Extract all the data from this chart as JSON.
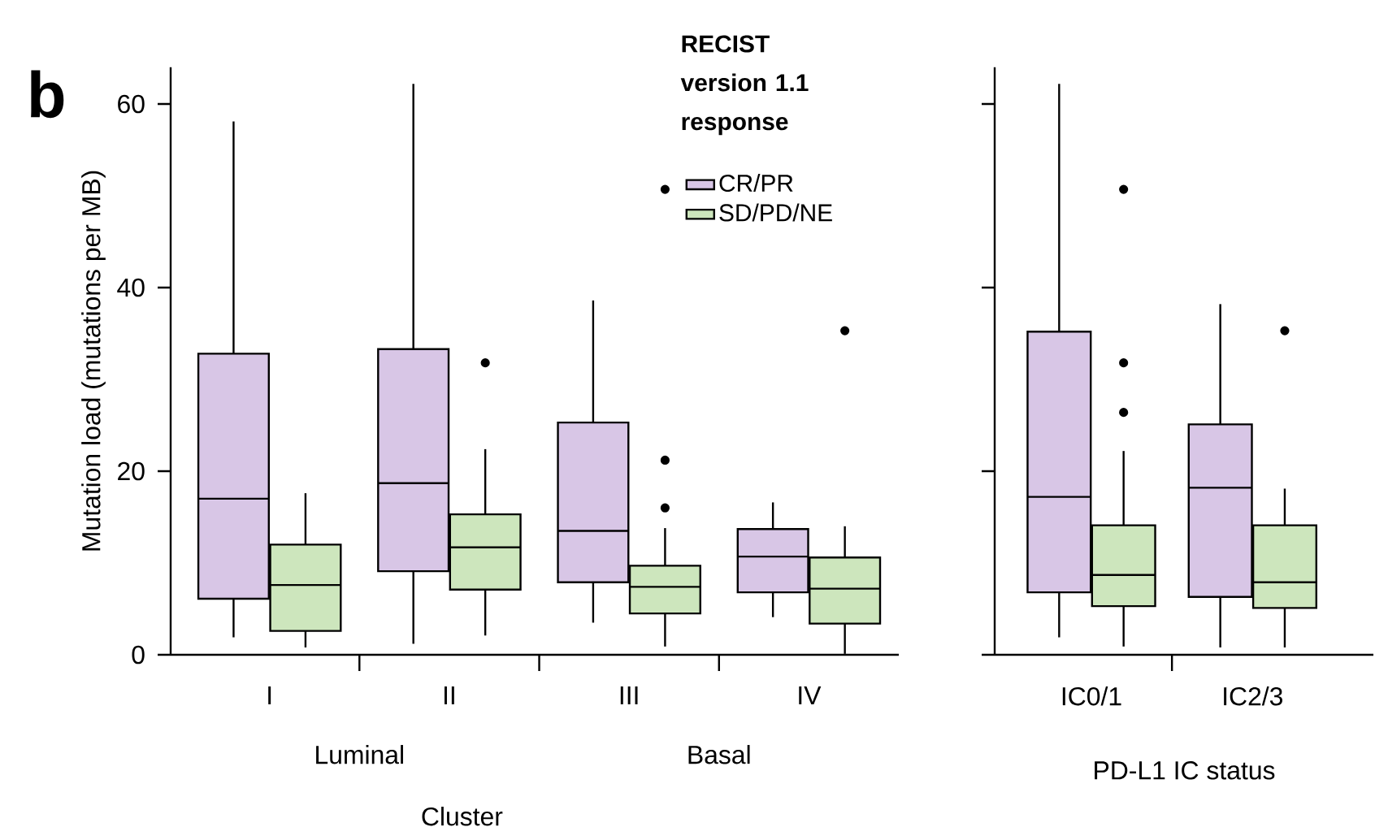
{
  "chart_data": [
    {
      "type": "box",
      "categories": [
        "I",
        "II",
        "III",
        "IV"
      ],
      "ylabel": "Mutation load (mutations per MB)",
      "xlabel": "Cluster",
      "legend_title": "RECIST version 1.1 response",
      "legend": "top right",
      "ylim": [
        0,
        64
      ],
      "yticks": [
        0,
        20,
        40,
        60
      ],
      "annotations": [
        "Luminal",
        "Basal",
        "b"
      ],
      "series": [
        {
          "name": "CR/PR",
          "color": "#d8c6e6",
          "boxes": [
            {
              "low": 1.9,
              "q1": 6.1,
              "median": 17.0,
              "q3": 32.8,
              "high": 58.1
            },
            {
              "low": 1.2,
              "q1": 9.1,
              "median": 18.7,
              "q3": 33.3,
              "high": 62.2
            },
            {
              "low": 3.5,
              "q1": 7.9,
              "median": 13.5,
              "q3": 25.3,
              "high": 38.6
            },
            {
              "low": 4.1,
              "q1": 6.8,
              "median": 10.7,
              "q3": 13.7,
              "high": 16.6
            }
          ]
        },
        {
          "name": "SD/PD/NE",
          "color": "#cde6bd",
          "boxes": [
            {
              "low": 0.8,
              "q1": 2.6,
              "median": 7.6,
              "q3": 12.0,
              "high": 17.6
            },
            {
              "low": 2.1,
              "q1": 7.1,
              "median": 11.7,
              "q3": 15.3,
              "high": 22.4,
              "outliers": [
                31.8
              ]
            },
            {
              "low": 0.9,
              "q1": 4.5,
              "median": 7.4,
              "q3": 9.7,
              "high": 13.8,
              "outliers": [
                50.7,
                21.2,
                16.0
              ]
            },
            {
              "low": 0.1,
              "q1": 3.4,
              "median": 7.2,
              "q3": 10.6,
              "high": 14.0,
              "outliers": [
                35.3
              ]
            }
          ]
        }
      ]
    },
    {
      "type": "box",
      "categories": [
        "IC0/1",
        "IC2/3"
      ],
      "xlabel": "PD-L1 IC status",
      "ylim": [
        0,
        64
      ],
      "yticks": [
        0,
        20,
        40,
        60
      ],
      "tick_labels": "x",
      "series": [
        {
          "color": "#d8c6e6",
          "boxes": [
            {
              "low": 1.9,
              "q1": 6.8,
              "median": 17.2,
              "q3": 35.2,
              "high": 62.2
            },
            {
              "low": 0.8,
              "q1": 6.3,
              "median": 18.2,
              "q3": 25.1,
              "high": 38.2
            }
          ]
        },
        {
          "color": "#cde6bd",
          "boxes": [
            {
              "low": 0.9,
              "q1": 5.3,
              "median": 8.7,
              "q3": 14.1,
              "high": 22.2,
              "outliers": [
                50.7,
                31.8,
                26.4
              ]
            },
            {
              "low": 0.8,
              "q1": 5.1,
              "median": 7.9,
              "q3": 14.1,
              "high": 18.1,
              "outliers": [
                35.3
              ]
            }
          ]
        }
      ]
    }
  ]
}
